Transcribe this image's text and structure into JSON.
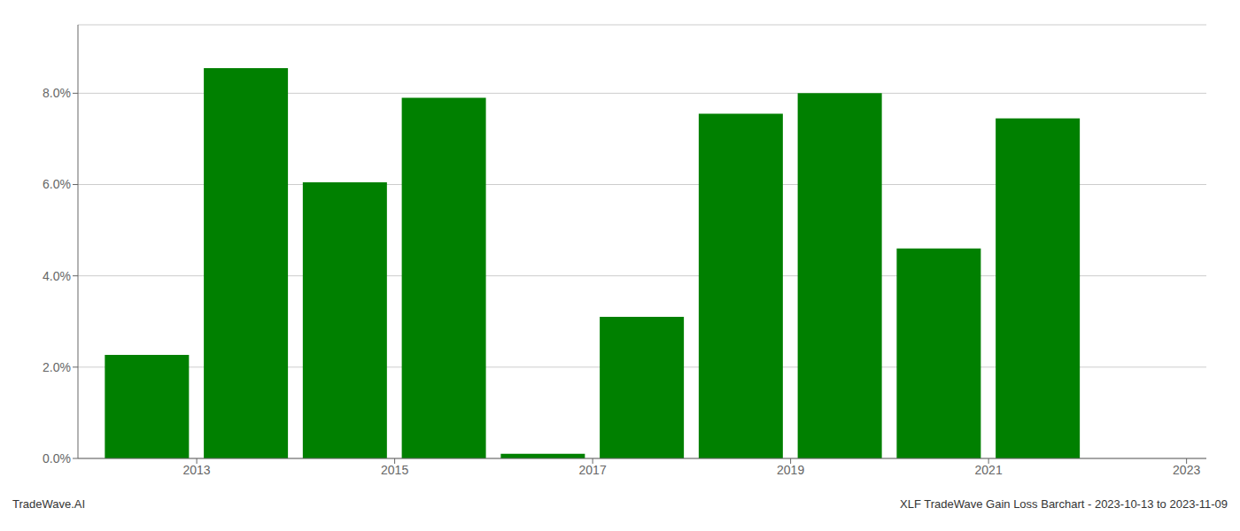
{
  "chart_data": {
    "type": "bar",
    "x": [
      2013,
      2014,
      2015,
      2016,
      2017,
      2018,
      2019,
      2020,
      2021,
      2022
    ],
    "values": [
      0.0227,
      0.0855,
      0.0605,
      0.079,
      0.001,
      0.031,
      0.0755,
      0.08,
      0.046,
      0.0745
    ],
    "color": "#008000",
    "xlim": [
      2012.3,
      2023.7
    ],
    "xticks": [
      {
        "value": 2013.5,
        "label": "2013"
      },
      {
        "value": 2015.5,
        "label": "2015"
      },
      {
        "value": 2017.5,
        "label": "2017"
      },
      {
        "value": 2019.5,
        "label": "2019"
      },
      {
        "value": 2021.5,
        "label": "2021"
      },
      {
        "value": 2023.5,
        "label": "2023"
      }
    ],
    "ylim": [
      0,
      0.095
    ],
    "yticks": [
      {
        "value": 0.0,
        "label": "0.0%"
      },
      {
        "value": 0.02,
        "label": "2.0%"
      },
      {
        "value": 0.04,
        "label": "4.0%"
      },
      {
        "value": 0.06,
        "label": "6.0%"
      },
      {
        "value": 0.08,
        "label": "8.0%"
      }
    ],
    "grid": true,
    "annotations": [
      "TradeWave.AI",
      "XLF TradeWave Gain Loss Barchart - 2023-10-13 to 2023-11-09"
    ]
  }
}
